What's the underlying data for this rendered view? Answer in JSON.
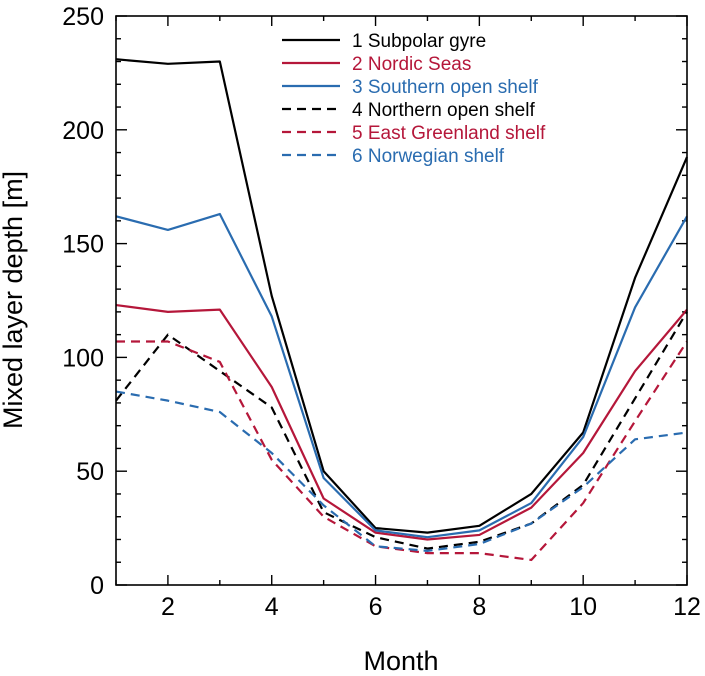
{
  "chart_data": {
    "type": "line",
    "xlabel": "Month",
    "ylabel": "Mixed layer depth [m]",
    "xlim": [
      1,
      12
    ],
    "ylim": [
      0,
      250
    ],
    "x": [
      1,
      2,
      3,
      4,
      5,
      6,
      7,
      8,
      9,
      10,
      11,
      12
    ],
    "xticks": [
      2,
      4,
      6,
      8,
      10,
      12
    ],
    "yticks": [
      0,
      50,
      100,
      150,
      200,
      250
    ],
    "legend_position": "top-right",
    "series": [
      {
        "name": "1 Subpolar gyre",
        "color": "#000000",
        "dash": "solid",
        "values": [
          231,
          229,
          230,
          127,
          50,
          25,
          23,
          26,
          40,
          67,
          135,
          188
        ]
      },
      {
        "name": "2 Nordic Seas",
        "color": "#b5173a",
        "dash": "solid",
        "values": [
          123,
          120,
          121,
          87,
          38,
          23,
          20,
          22,
          34,
          58,
          94,
          121
        ]
      },
      {
        "name": "3 Southern open shelf",
        "color": "#2a6cb0",
        "dash": "solid",
        "values": [
          162,
          156,
          163,
          118,
          47,
          24,
          21,
          24,
          36,
          65,
          122,
          162
        ]
      },
      {
        "name": "4 Northern open shelf",
        "color": "#000000",
        "dash": "dashed",
        "values": [
          81,
          110,
          94,
          78,
          32,
          21,
          16,
          19,
          27,
          44,
          82,
          120
        ]
      },
      {
        "name": "5 East Greenland shelf",
        "color": "#b5173a",
        "dash": "dashed",
        "values": [
          107,
          107,
          98,
          55,
          30,
          17,
          14,
          14,
          11,
          36,
          72,
          107
        ]
      },
      {
        "name": "6 Norwegian shelf",
        "color": "#2a6cb0",
        "dash": "dashed",
        "values": [
          85,
          81,
          76,
          58,
          35,
          17,
          15,
          18,
          27,
          43,
          64,
          67
        ]
      }
    ]
  }
}
